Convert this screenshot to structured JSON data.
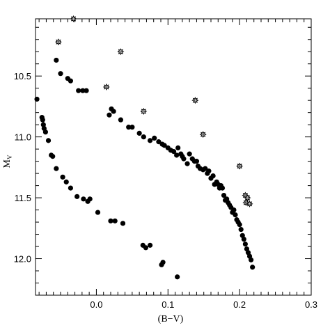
{
  "chart_data": {
    "type": "scatter",
    "xlabel": "(B−V)",
    "ylabel_main": "M",
    "ylabel_sub": "V",
    "xlim": [
      -0.085,
      0.3
    ],
    "ylim": [
      12.3,
      10.03
    ],
    "y_inverted": true,
    "grid": false,
    "x_ticks": [
      {
        "value": 0.0,
        "label": "0.0"
      },
      {
        "value": 0.1,
        "label": "0.1"
      },
      {
        "value": 0.2,
        "label": "0.2"
      },
      {
        "value": 0.3,
        "label": "0.3"
      }
    ],
    "y_ticks": [
      {
        "value": 10.5,
        "label": "10.5"
      },
      {
        "value": 11.0,
        "label": "11.0"
      },
      {
        "value": 11.5,
        "label": "11.5"
      },
      {
        "value": 12.0,
        "label": "12.0"
      }
    ],
    "series": [
      {
        "marker": "filled-circle",
        "points": [
          [
            -0.083,
            10.69
          ],
          [
            -0.076,
            10.84
          ],
          [
            -0.075,
            10.86
          ],
          [
            -0.074,
            10.9
          ],
          [
            -0.073,
            10.93
          ],
          [
            -0.071,
            10.96
          ],
          [
            -0.067,
            11.03
          ],
          [
            -0.063,
            11.15
          ],
          [
            -0.061,
            11.16
          ],
          [
            -0.056,
            11.26
          ],
          [
            -0.047,
            11.33
          ],
          [
            -0.042,
            11.37
          ],
          [
            -0.036,
            11.42
          ],
          [
            -0.027,
            11.49
          ],
          [
            -0.018,
            11.51
          ],
          [
            -0.012,
            11.53
          ],
          [
            -0.009,
            11.51
          ],
          [
            0.002,
            11.62
          ],
          [
            0.02,
            11.69
          ],
          [
            0.026,
            11.69
          ],
          [
            0.037,
            11.71
          ],
          [
            0.065,
            11.89
          ],
          [
            0.069,
            11.91
          ],
          [
            0.075,
            11.89
          ],
          [
            0.091,
            12.05
          ],
          [
            0.093,
            12.03
          ],
          [
            0.113,
            12.15
          ],
          [
            -0.056,
            10.37
          ],
          [
            -0.05,
            10.48
          ],
          [
            -0.04,
            10.52
          ],
          [
            -0.036,
            10.54
          ],
          [
            -0.025,
            10.62
          ],
          [
            -0.019,
            10.62
          ],
          [
            -0.014,
            10.62
          ],
          [
            0.018,
            10.82
          ],
          [
            0.021,
            10.77
          ],
          [
            0.024,
            10.79
          ],
          [
            0.034,
            10.86
          ],
          [
            0.045,
            10.92
          ],
          [
            0.05,
            10.92
          ],
          [
            0.06,
            10.97
          ],
          [
            0.066,
            11.0
          ],
          [
            0.075,
            11.03
          ],
          [
            0.081,
            11.01
          ],
          [
            0.087,
            11.04
          ],
          [
            0.092,
            11.06
          ],
          [
            0.095,
            11.07
          ],
          [
            0.1,
            11.09
          ],
          [
            0.104,
            11.11
          ],
          [
            0.108,
            11.12
          ],
          [
            0.112,
            11.15
          ],
          [
            0.114,
            11.09
          ],
          [
            0.118,
            11.14
          ],
          [
            0.12,
            11.16
          ],
          [
            0.122,
            11.18
          ],
          [
            0.127,
            11.22
          ],
          [
            0.13,
            11.14
          ],
          [
            0.134,
            11.18
          ],
          [
            0.137,
            11.2
          ],
          [
            0.14,
            11.2
          ],
          [
            0.142,
            11.24
          ],
          [
            0.145,
            11.26
          ],
          [
            0.149,
            11.27
          ],
          [
            0.152,
            11.26
          ],
          [
            0.155,
            11.3
          ],
          [
            0.157,
            11.28
          ],
          [
            0.16,
            11.34
          ],
          [
            0.163,
            11.32
          ],
          [
            0.165,
            11.39
          ],
          [
            0.168,
            11.37
          ],
          [
            0.17,
            11.39
          ],
          [
            0.172,
            11.42
          ],
          [
            0.174,
            11.4
          ],
          [
            0.176,
            11.42
          ],
          [
            0.178,
            11.48
          ],
          [
            0.18,
            11.52
          ],
          [
            0.182,
            11.51
          ],
          [
            0.184,
            11.54
          ],
          [
            0.186,
            11.56
          ],
          [
            0.188,
            11.58
          ],
          [
            0.19,
            11.62
          ],
          [
            0.192,
            11.6
          ],
          [
            0.194,
            11.64
          ],
          [
            0.196,
            11.68
          ],
          [
            0.198,
            11.7
          ],
          [
            0.2,
            11.72
          ],
          [
            0.202,
            11.76
          ],
          [
            0.204,
            11.81
          ],
          [
            0.206,
            11.84
          ],
          [
            0.208,
            11.88
          ],
          [
            0.21,
            11.92
          ],
          [
            0.212,
            11.95
          ],
          [
            0.214,
            11.98
          ],
          [
            0.216,
            12.01
          ],
          [
            0.218,
            12.07
          ]
        ]
      },
      {
        "marker": "open-star",
        "points": [
          [
            -0.032,
            10.03
          ],
          [
            -0.053,
            10.22
          ],
          [
            0.034,
            10.3
          ],
          [
            0.014,
            10.59
          ],
          [
            0.066,
            10.79
          ],
          [
            0.138,
            10.7
          ],
          [
            0.149,
            10.98
          ],
          [
            0.2,
            11.24
          ],
          [
            0.208,
            11.48
          ],
          [
            0.211,
            11.5
          ],
          [
            0.209,
            11.54
          ],
          [
            0.214,
            11.55
          ]
        ]
      }
    ]
  }
}
